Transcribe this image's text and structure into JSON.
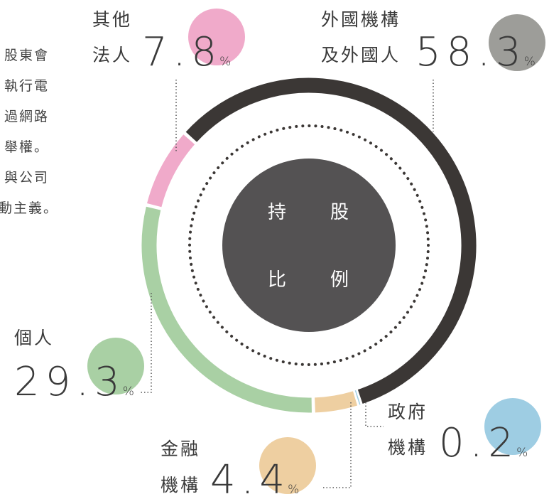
{
  "chart_data": {
    "type": "donut",
    "categories": [
      [
        "外國機構",
        "及外國人"
      ],
      [
        "政府",
        "機構"
      ],
      [
        "金融",
        "機構"
      ],
      [
        "個人"
      ],
      [
        "其他",
        "法人"
      ]
    ],
    "values": [
      58.3,
      0.2,
      4.4,
      29.3,
      7.8
    ],
    "unit": "%",
    "colors": [
      "#3b3735",
      "#9ecde3",
      "#eecfa1",
      "#a9d0a4",
      "#f0aaca"
    ],
    "label_colors": [
      "#9d9d99",
      "#9ecde3",
      "#eecfa1",
      "#a9d0a4",
      "#f0aaca"
    ],
    "center_text": [
      "持",
      "股",
      "比",
      "例"
    ],
    "side_text": [
      "股東會",
      "執行電",
      "過網路",
      "舉權。",
      "與公司",
      "動主義。"
    ]
  }
}
